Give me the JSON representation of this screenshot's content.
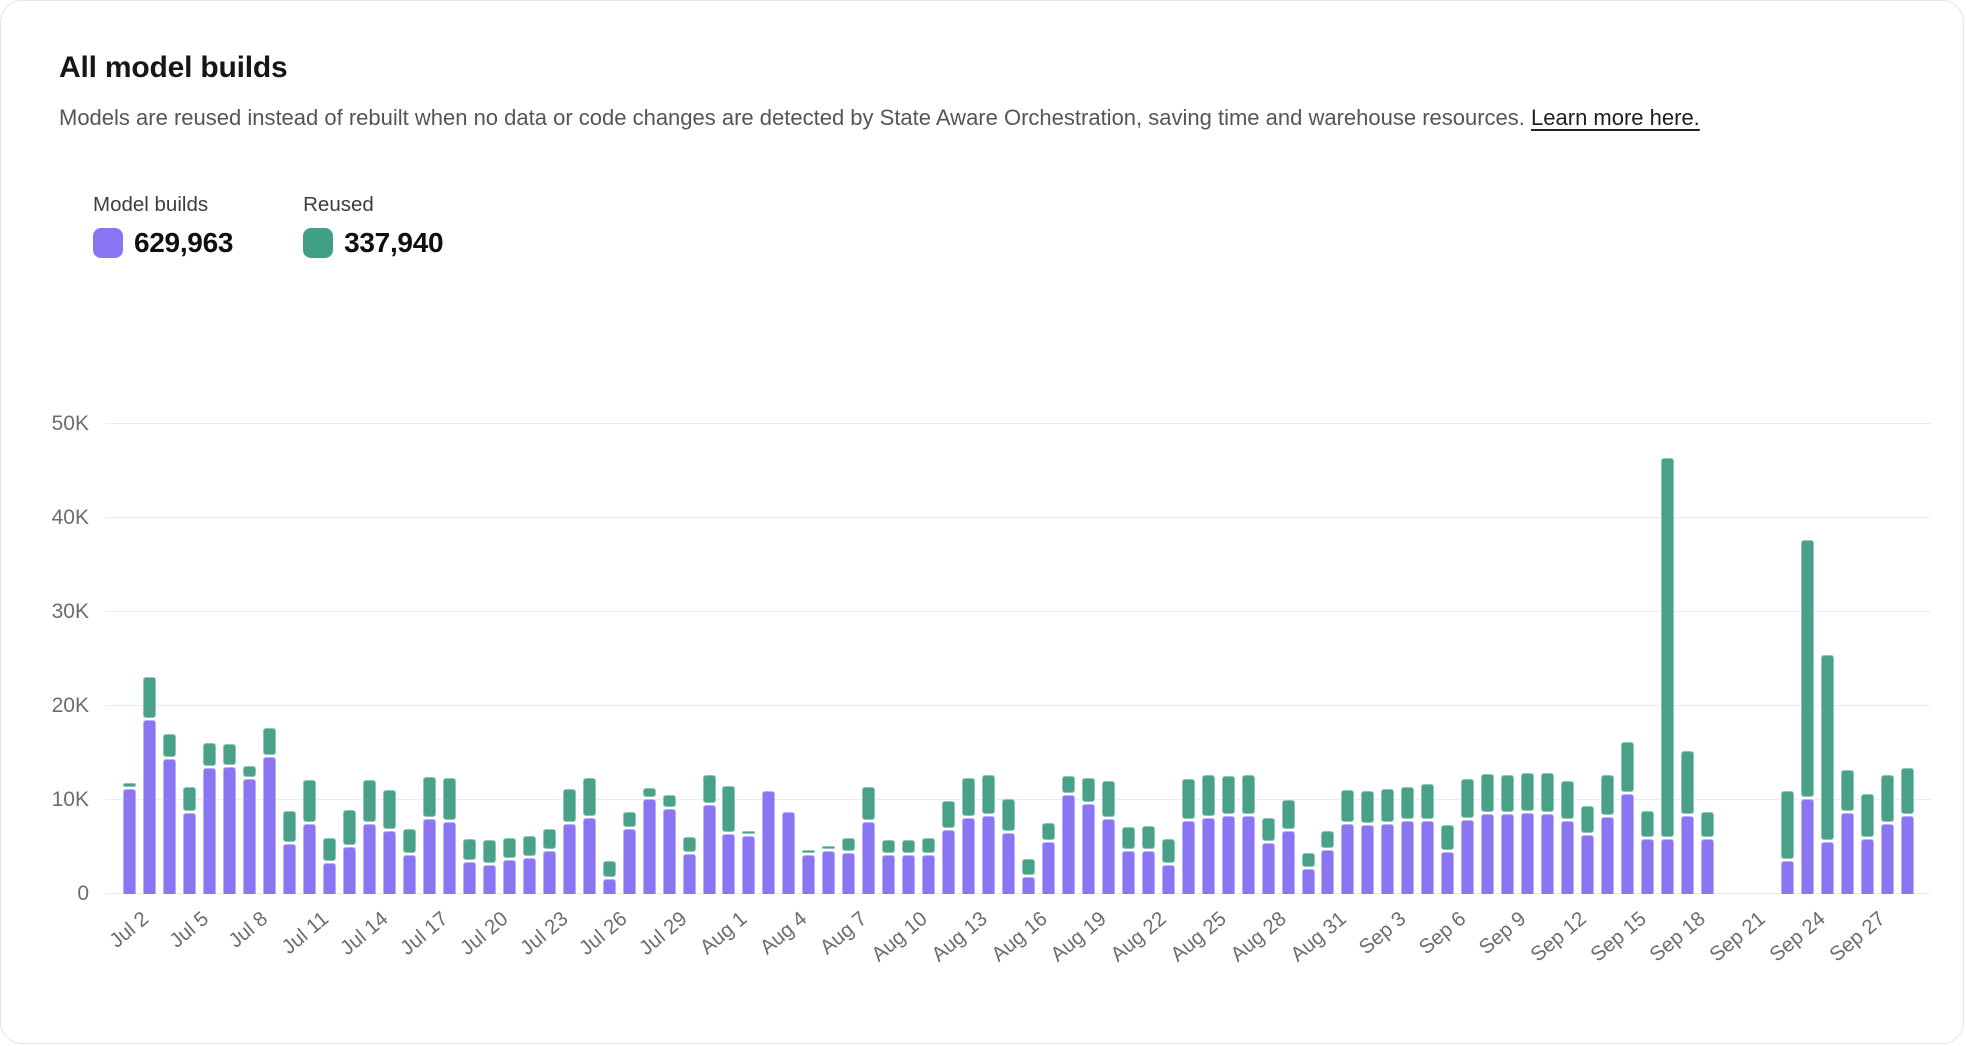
{
  "header": {
    "title": "All model builds",
    "description": "Models are reused instead of rebuilt when no data or code changes are detected by State Aware Orchestration, saving time and warehouse resources.",
    "learn_more": "Learn more here."
  },
  "legend": {
    "items": [
      {
        "label": "Model builds",
        "value": "629,963",
        "color": "#8B74F4"
      },
      {
        "label": "Reused",
        "value": "337,940",
        "color": "#40A086"
      }
    ]
  },
  "chart_data": {
    "type": "bar",
    "stacked": true,
    "title": "All model builds",
    "xlabel": "",
    "ylabel": "",
    "ylim": [
      0,
      50000
    ],
    "y_ticks": [
      "0",
      "10K",
      "20K",
      "30K",
      "40K",
      "50K"
    ],
    "grid": "horizontal",
    "legend_position": "top-left",
    "x_tick_every": 3,
    "missing_dates": [
      "Sep 20",
      "Sep 21",
      "Sep 22"
    ],
    "categories": [
      "Jul 2",
      "Jul 3",
      "Jul 4",
      "Jul 5",
      "Jul 6",
      "Jul 7",
      "Jul 8",
      "Jul 9",
      "Jul 10",
      "Jul 11",
      "Jul 12",
      "Jul 13",
      "Jul 14",
      "Jul 15",
      "Jul 16",
      "Jul 17",
      "Jul 18",
      "Jul 19",
      "Jul 20",
      "Jul 21",
      "Jul 22",
      "Jul 23",
      "Jul 24",
      "Jul 25",
      "Jul 26",
      "Jul 27",
      "Jul 28",
      "Jul 29",
      "Jul 30",
      "Jul 31",
      "Aug 1",
      "Aug 2",
      "Aug 3",
      "Aug 4",
      "Aug 5",
      "Aug 6",
      "Aug 7",
      "Aug 8",
      "Aug 9",
      "Aug 10",
      "Aug 11",
      "Aug 12",
      "Aug 13",
      "Aug 14",
      "Aug 15",
      "Aug 16",
      "Aug 17",
      "Aug 18",
      "Aug 19",
      "Aug 20",
      "Aug 21",
      "Aug 22",
      "Aug 23",
      "Aug 24",
      "Aug 25",
      "Aug 26",
      "Aug 27",
      "Aug 28",
      "Aug 29",
      "Aug 30",
      "Aug 31",
      "Sep 1",
      "Sep 2",
      "Sep 3",
      "Sep 4",
      "Sep 5",
      "Sep 6",
      "Sep 7",
      "Sep 8",
      "Sep 9",
      "Sep 10",
      "Sep 11",
      "Sep 12",
      "Sep 13",
      "Sep 14",
      "Sep 15",
      "Sep 16",
      "Sep 17",
      "Sep 18",
      "Sep 19",
      "Sep 20",
      "Sep 21",
      "Sep 22",
      "Sep 23",
      "Sep 24",
      "Sep 25",
      "Sep 26",
      "Sep 27",
      "Sep 28",
      "Sep 29"
    ],
    "series": [
      {
        "name": "Model builds",
        "total": 629963,
        "color": "#8A75F2",
        "border_color": "#BCAEF8",
        "values": [
          11200,
          18500,
          14400,
          8600,
          13400,
          13500,
          12200,
          14600,
          5300,
          7400,
          3300,
          5000,
          7400,
          6700,
          4100,
          8000,
          7700,
          3400,
          3100,
          3600,
          3800,
          4600,
          7500,
          8100,
          1600,
          6900,
          10100,
          9000,
          4300,
          9500,
          6400,
          6200,
          11000,
          8700,
          4200,
          4600,
          4400,
          7700,
          4200,
          4200,
          4200,
          6800,
          8100,
          8300,
          6500,
          1800,
          5500,
          10500,
          9600,
          8000,
          4600,
          4600,
          3100,
          7800,
          8100,
          8300,
          8300,
          5400,
          6700,
          2700,
          4700,
          7400,
          7300,
          7500,
          7800,
          7800,
          4500,
          7900,
          8500,
          8500,
          8600,
          8500,
          7800,
          6300,
          8200,
          10600,
          5800,
          5900,
          8300,
          5800,
          null,
          null,
          null,
          3500,
          10100,
          5500,
          8600,
          5800,
          7500,
          8300
        ]
      },
      {
        "name": "Reused",
        "total": 337940,
        "color": "#4AA189",
        "border_color": "#8CC6B4",
        "values": [
          400,
          4400,
          2400,
          2600,
          2500,
          2300,
          1200,
          2900,
          3300,
          4500,
          2400,
          3700,
          4500,
          4200,
          2600,
          4200,
          4400,
          2200,
          2400,
          2200,
          2200,
          2100,
          3500,
          4000,
          1700,
          1600,
          1000,
          1300,
          1600,
          2900,
          4900,
          200,
          0,
          0,
          100,
          300,
          1300,
          3500,
          1300,
          1300,
          1500,
          2900,
          4000,
          4100,
          3400,
          1700,
          1800,
          1800,
          2500,
          3800,
          2300,
          2400,
          2500,
          4200,
          4300,
          4000,
          4100,
          2500,
          3100,
          1400,
          1800,
          3500,
          3500,
          3500,
          3400,
          3700,
          2600,
          4100,
          4100,
          4000,
          4100,
          4200,
          4000,
          2900,
          4300,
          5400,
          2800,
          40300,
          6700,
          2700,
          null,
          null,
          null,
          7300,
          27400,
          19700,
          4400,
          4600,
          4900,
          4900
        ]
      }
    ]
  }
}
